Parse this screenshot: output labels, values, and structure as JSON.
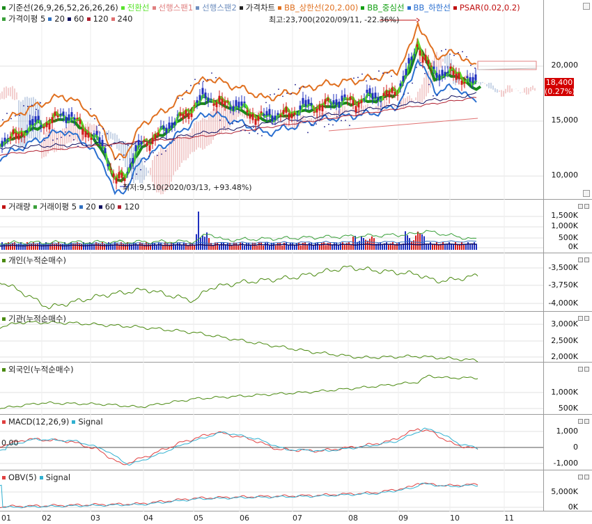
{
  "colors": {
    "up": "#d41b1b",
    "down": "#1f2fbf",
    "conv": "#59e32c",
    "base": "#1a8a1a",
    "span1": "#e08080",
    "span2": "#6f8fbf",
    "bbu": "#e07020",
    "bbm": "#13a013",
    "bbl": "#2a6fd0",
    "psar": "#1a1a8a",
    "green": "#4a8a10",
    "macd": "#e04040",
    "signal": "#30b0d0",
    "obv": "#e04040"
  },
  "price_pane": {
    "legend": [
      {
        "label": "기준선(26,9,26,52,26,26,26)",
        "color": "#1a8a1a"
      },
      {
        "label": "전환선",
        "color": "#59e32c"
      },
      {
        "label": "선행스팬1",
        "color": "#e08080"
      },
      {
        "label": "선행스팬2",
        "color": "#6f8fbf"
      },
      {
        "label": "가격차트",
        "color": "#222222"
      },
      {
        "label": "BB_상한선(20,2.00)",
        "color": "#e07020"
      },
      {
        "label": "BB_중심선",
        "color": "#13a013"
      },
      {
        "label": "BB_하한선",
        "color": "#2a6fd0"
      },
      {
        "label": "PSAR(0.02,0.2)",
        "color": "#c01010"
      }
    ],
    "legend2": [
      {
        "label": "가격이평 5",
        "color": "#3aa03a"
      },
      {
        "label": "20",
        "color": "#3070c0"
      },
      {
        "label": "60",
        "color": "#101060"
      },
      {
        "label": "120",
        "color": "#b02030"
      },
      {
        "label": "240",
        "color": "#e07070"
      }
    ],
    "high_note": "최고:23,700(2020/09/11, -22.36%)",
    "low_note": "최저:9,510(2020/03/13, +93.48%)",
    "ylabels": [
      "20,000",
      "15,000",
      "10,000"
    ],
    "last_price": "18,400",
    "last_change": "(0.27%)"
  },
  "volume_pane": {
    "legend": [
      {
        "label": "거래량",
        "color": "#c01010"
      },
      {
        "label": "거래이평 5",
        "color": "#3aa03a"
      },
      {
        "label": "20",
        "color": "#3070c0"
      },
      {
        "label": "60",
        "color": "#101060"
      },
      {
        "label": "120",
        "color": "#b02030"
      }
    ],
    "ylabels": [
      "1,500K",
      "1,000K",
      "500K",
      "0K"
    ]
  },
  "individual_pane": {
    "legend": "개인(누적순매수)",
    "ylabels": [
      "-3,500K",
      "-3,750K",
      "-4,000K"
    ]
  },
  "institution_pane": {
    "legend": "기관(누적순매수)",
    "ylabels": [
      "3,000K",
      "2,500K",
      "2,000K"
    ]
  },
  "foreign_pane": {
    "legend": "외국인(누적순매수)",
    "ylabels": [
      "1,000K",
      "500K"
    ]
  },
  "macd_pane": {
    "legend": [
      {
        "label": "MACD(12,26,9)",
        "color": "#e04040"
      },
      {
        "label": "Signal",
        "color": "#30b0d0"
      }
    ],
    "zero_label": "0.00",
    "ylabels": [
      "1,000",
      "0",
      "-1,000"
    ]
  },
  "obv_pane": {
    "legend": [
      {
        "label": "OBV(5)",
        "color": "#e04040"
      },
      {
        "label": "Signal",
        "color": "#30b0d0"
      }
    ],
    "ylabels": [
      "5,000K",
      "0K"
    ]
  },
  "x_axis": [
    "01",
    "02",
    "03",
    "04",
    "05",
    "06",
    "07",
    "08",
    "09",
    "10",
    "11"
  ]
}
